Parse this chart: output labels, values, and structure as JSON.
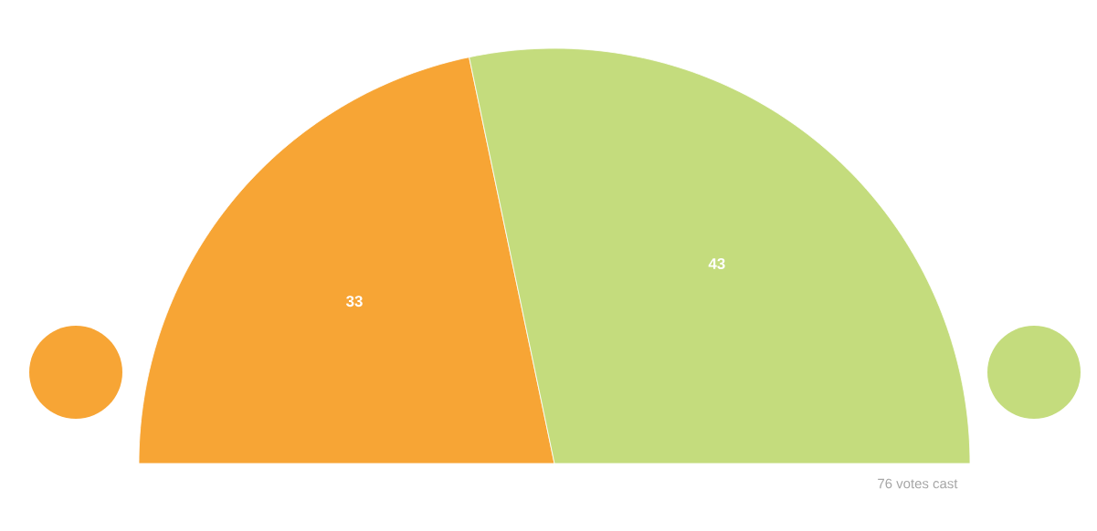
{
  "chart_data": {
    "type": "pie",
    "categories": [
      null,
      null
    ],
    "values": [
      33,
      43
    ],
    "colors": [
      "#f7a535",
      "#c4dc7d"
    ],
    "data_labels": true,
    "annotations": [
      "76 votes cast"
    ]
  }
}
